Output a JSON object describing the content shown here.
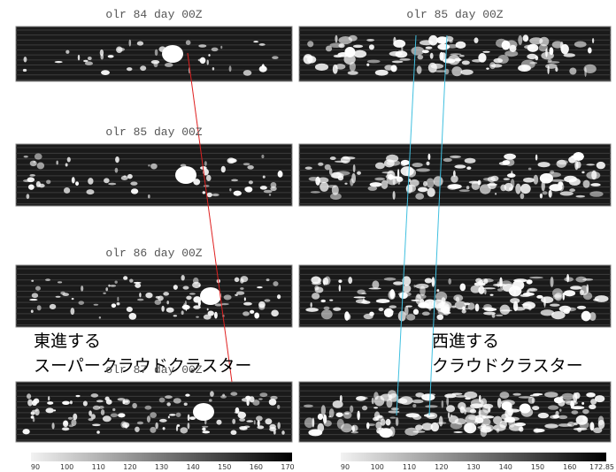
{
  "panels_left": [
    "olr 84 day 00Z",
    "olr 85 day 00Z",
    "olr 86 day 00Z",
    "olr 87 day 00Z"
  ],
  "panels_right": [
    "olr 85 day 00Z"
  ],
  "annotations": {
    "east_1": "東進する",
    "east_2": "スーパークラウドクラスター",
    "west_1": "西進する",
    "west_2": "クラウドクラスター"
  },
  "colorbar_left": [
    "90",
    "100",
    "110",
    "120",
    "130",
    "140",
    "150",
    "160",
    "170"
  ],
  "colorbar_right": [
    "90",
    "100",
    "110",
    "120",
    "130",
    "140",
    "150",
    "160",
    "172.85"
  ]
}
